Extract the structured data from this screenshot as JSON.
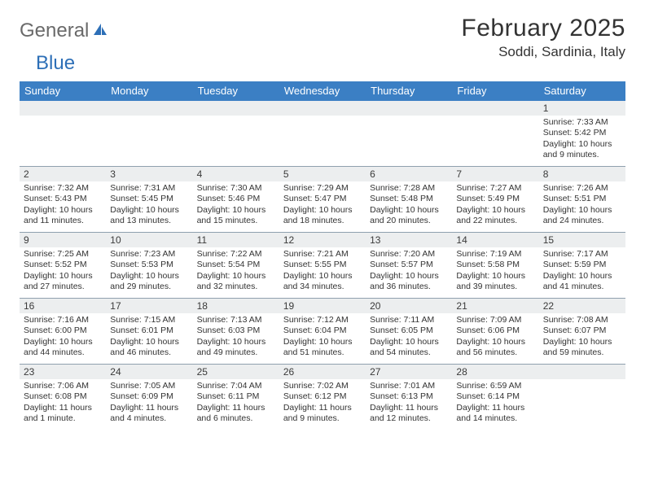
{
  "logo": {
    "part1": "General",
    "part2": "Blue"
  },
  "title": "February 2025",
  "location": "Soddi, Sardinia, Italy",
  "colors": {
    "header_bg": "#3b7fc4",
    "header_text": "#ffffff",
    "stripe_bg": "#eceeef",
    "rule": "#8fa0ae",
    "logo_gray": "#6a6a6a",
    "logo_blue": "#2d6fb7"
  },
  "dayNames": [
    "Sunday",
    "Monday",
    "Tuesday",
    "Wednesday",
    "Thursday",
    "Friday",
    "Saturday"
  ],
  "weeks": [
    {
      "nums": [
        "",
        "",
        "",
        "",
        "",
        "",
        "1"
      ],
      "cells": [
        "",
        "",
        "",
        "",
        "",
        "",
        "Sunrise: 7:33 AM\nSunset: 5:42 PM\nDaylight: 10 hours and 9 minutes."
      ],
      "leadBlank": 6
    },
    {
      "nums": [
        "2",
        "3",
        "4",
        "5",
        "6",
        "7",
        "8"
      ],
      "cells": [
        "Sunrise: 7:32 AM\nSunset: 5:43 PM\nDaylight: 10 hours and 11 minutes.",
        "Sunrise: 7:31 AM\nSunset: 5:45 PM\nDaylight: 10 hours and 13 minutes.",
        "Sunrise: 7:30 AM\nSunset: 5:46 PM\nDaylight: 10 hours and 15 minutes.",
        "Sunrise: 7:29 AM\nSunset: 5:47 PM\nDaylight: 10 hours and 18 minutes.",
        "Sunrise: 7:28 AM\nSunset: 5:48 PM\nDaylight: 10 hours and 20 minutes.",
        "Sunrise: 7:27 AM\nSunset: 5:49 PM\nDaylight: 10 hours and 22 minutes.",
        "Sunrise: 7:26 AM\nSunset: 5:51 PM\nDaylight: 10 hours and 24 minutes."
      ]
    },
    {
      "nums": [
        "9",
        "10",
        "11",
        "12",
        "13",
        "14",
        "15"
      ],
      "cells": [
        "Sunrise: 7:25 AM\nSunset: 5:52 PM\nDaylight: 10 hours and 27 minutes.",
        "Sunrise: 7:23 AM\nSunset: 5:53 PM\nDaylight: 10 hours and 29 minutes.",
        "Sunrise: 7:22 AM\nSunset: 5:54 PM\nDaylight: 10 hours and 32 minutes.",
        "Sunrise: 7:21 AM\nSunset: 5:55 PM\nDaylight: 10 hours and 34 minutes.",
        "Sunrise: 7:20 AM\nSunset: 5:57 PM\nDaylight: 10 hours and 36 minutes.",
        "Sunrise: 7:19 AM\nSunset: 5:58 PM\nDaylight: 10 hours and 39 minutes.",
        "Sunrise: 7:17 AM\nSunset: 5:59 PM\nDaylight: 10 hours and 41 minutes."
      ]
    },
    {
      "nums": [
        "16",
        "17",
        "18",
        "19",
        "20",
        "21",
        "22"
      ],
      "cells": [
        "Sunrise: 7:16 AM\nSunset: 6:00 PM\nDaylight: 10 hours and 44 minutes.",
        "Sunrise: 7:15 AM\nSunset: 6:01 PM\nDaylight: 10 hours and 46 minutes.",
        "Sunrise: 7:13 AM\nSunset: 6:03 PM\nDaylight: 10 hours and 49 minutes.",
        "Sunrise: 7:12 AM\nSunset: 6:04 PM\nDaylight: 10 hours and 51 minutes.",
        "Sunrise: 7:11 AM\nSunset: 6:05 PM\nDaylight: 10 hours and 54 minutes.",
        "Sunrise: 7:09 AM\nSunset: 6:06 PM\nDaylight: 10 hours and 56 minutes.",
        "Sunrise: 7:08 AM\nSunset: 6:07 PM\nDaylight: 10 hours and 59 minutes."
      ]
    },
    {
      "nums": [
        "23",
        "24",
        "25",
        "26",
        "27",
        "28",
        ""
      ],
      "cells": [
        "Sunrise: 7:06 AM\nSunset: 6:08 PM\nDaylight: 11 hours and 1 minute.",
        "Sunrise: 7:05 AM\nSunset: 6:09 PM\nDaylight: 11 hours and 4 minutes.",
        "Sunrise: 7:04 AM\nSunset: 6:11 PM\nDaylight: 11 hours and 6 minutes.",
        "Sunrise: 7:02 AM\nSunset: 6:12 PM\nDaylight: 11 hours and 9 minutes.",
        "Sunrise: 7:01 AM\nSunset: 6:13 PM\nDaylight: 11 hours and 12 minutes.",
        "Sunrise: 6:59 AM\nSunset: 6:14 PM\nDaylight: 11 hours and 14 minutes.",
        ""
      ]
    }
  ]
}
